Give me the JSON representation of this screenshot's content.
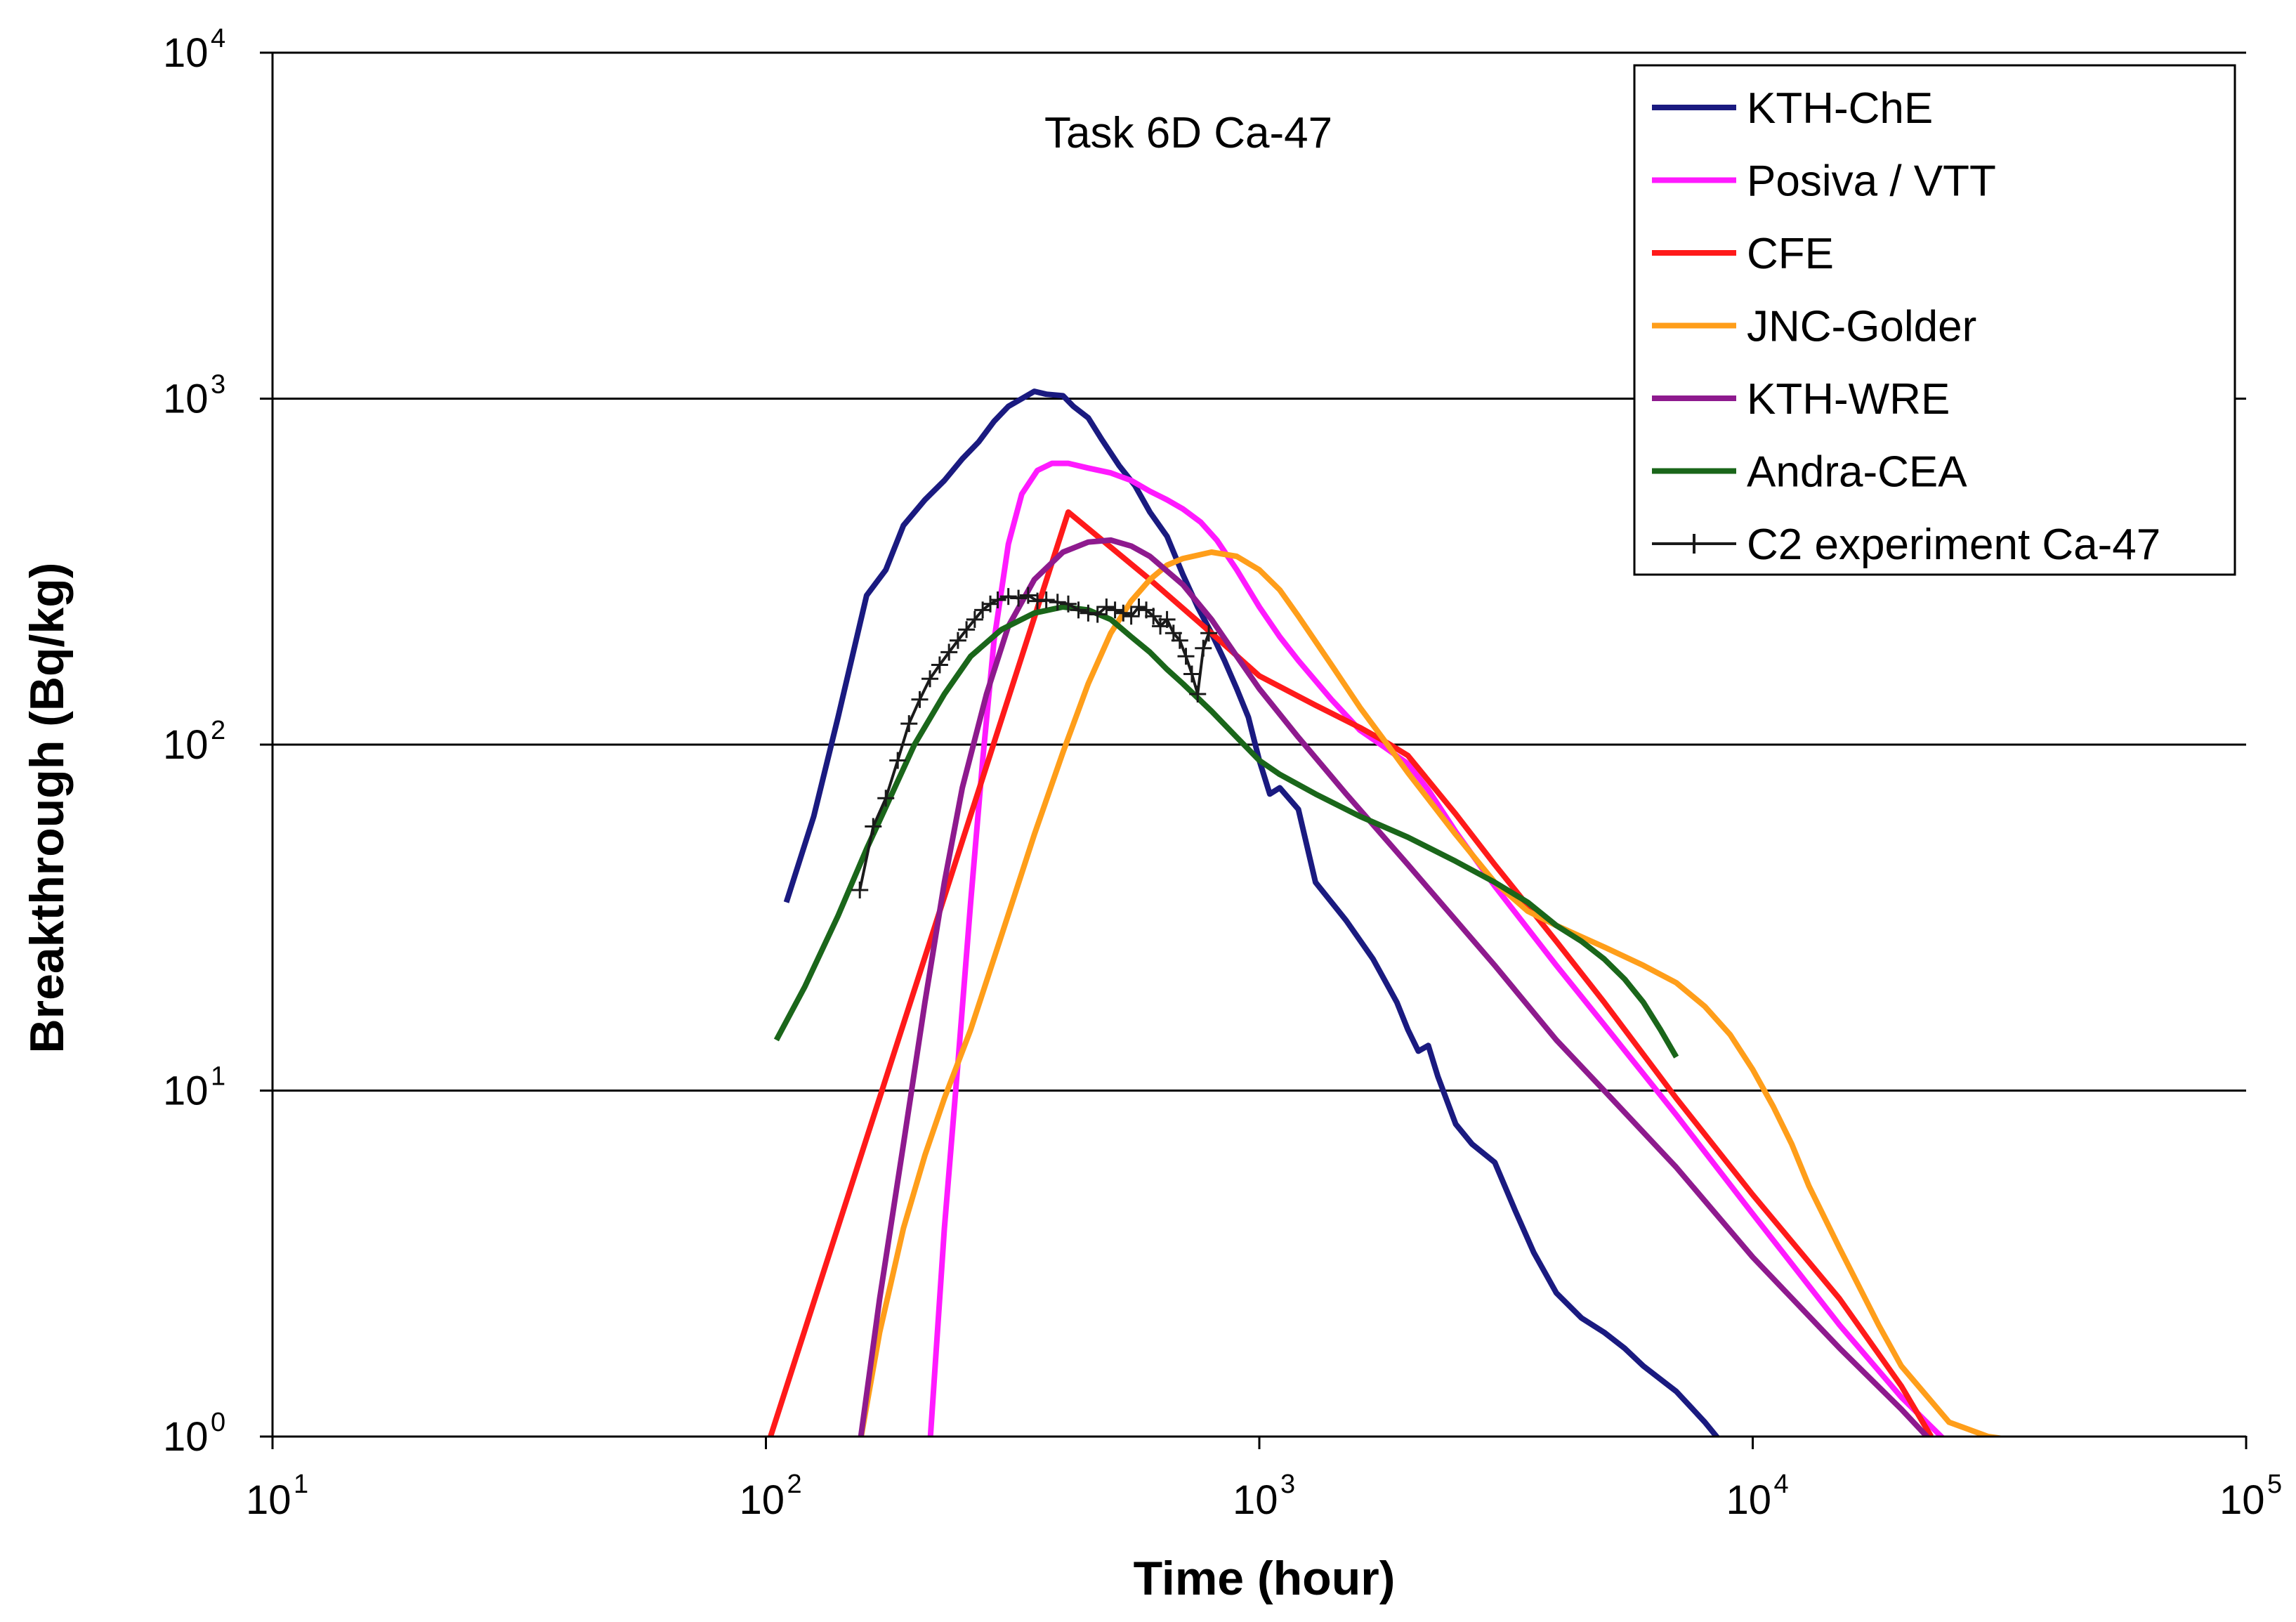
{
  "chart_data": {
    "type": "line",
    "title": "Task 6D Ca-47",
    "xlabel": "Time (hour)",
    "ylabel": "Breakthrough (Bq/kg)",
    "xscale": "log",
    "yscale": "log",
    "xlim": [
      10,
      100000
    ],
    "ylim": [
      1,
      10000
    ],
    "x_ticks": [
      {
        "base": "10",
        "exp": "1",
        "value": 10
      },
      {
        "base": "10",
        "exp": "2",
        "value": 100
      },
      {
        "base": "10",
        "exp": "3",
        "value": 1000
      },
      {
        "base": "10",
        "exp": "4",
        "value": 10000
      },
      {
        "base": "10",
        "exp": "5",
        "value": 100000
      }
    ],
    "y_ticks": [
      {
        "base": "10",
        "exp": "0",
        "value": 1
      },
      {
        "base": "10",
        "exp": "1",
        "value": 10
      },
      {
        "base": "10",
        "exp": "2",
        "value": 100
      },
      {
        "base": "10",
        "exp": "3",
        "value": 1000
      },
      {
        "base": "10",
        "exp": "4",
        "value": 10000
      }
    ],
    "grid": "horizontal major",
    "legend_position": "top-right",
    "series": [
      {
        "name": "KTH-ChE",
        "color": "#1a1a80",
        "style": "line",
        "x": [
          110,
          125,
          140,
          160,
          175,
          190,
          210,
          230,
          250,
          270,
          290,
          310,
          330,
          350,
          370,
          400,
          420,
          450,
          480,
          520,
          560,
          600,
          650,
          700,
          750,
          800,
          850,
          900,
          950,
          1000,
          1050,
          1100,
          1200,
          1300,
          1500,
          1700,
          1900,
          2000,
          2100,
          2200,
          2300,
          2500,
          2700,
          3000,
          3300,
          3600,
          4000,
          4500,
          5000,
          5500,
          6000,
          7000,
          8000,
          8700
        ],
        "y": [
          35,
          62,
          120,
          270,
          320,
          430,
          510,
          580,
          670,
          750,
          860,
          950,
          1000,
          1050,
          1030,
          1020,
          950,
          880,
          760,
          640,
          560,
          470,
          400,
          310,
          250,
          210,
          175,
          145,
          120,
          90,
          72,
          75,
          65,
          40,
          31,
          24,
          18,
          15,
          13,
          13.5,
          11,
          8,
          7,
          6.2,
          4.5,
          3.4,
          2.6,
          2.2,
          2,
          1.8,
          1.6,
          1.35,
          1.1,
          0.95
        ]
      },
      {
        "name": "Posiva / VTT",
        "color": "#ff1aff",
        "style": "line",
        "x": [
          215,
          230,
          245,
          260,
          275,
          290,
          310,
          330,
          355,
          380,
          410,
          450,
          500,
          550,
          600,
          650,
          700,
          760,
          820,
          900,
          1000,
          1100,
          1200,
          1400,
          1600,
          1800,
          2000,
          2200,
          2500,
          3000,
          4000,
          5000,
          7000,
          10000,
          15000,
          20000,
          25000
        ],
        "y": [
          0.95,
          4,
          12,
          35,
          90,
          200,
          380,
          530,
          620,
          650,
          650,
          630,
          610,
          580,
          540,
          510,
          480,
          440,
          390,
          320,
          250,
          205,
          175,
          135,
          110,
          98,
          88,
          74,
          56,
          39,
          23,
          15.5,
          8.5,
          4.4,
          2.1,
          1.3,
          0.95
        ]
      },
      {
        "name": "CFE",
        "color": "#ff1a1a",
        "style": "line",
        "x": [
          101,
          410,
          600,
          800,
          1000,
          1300,
          1600,
          1800,
          2000,
          2500,
          3000,
          4000,
          5000,
          7000,
          10000,
          15000,
          20000,
          23000
        ],
        "y": [
          0.95,
          470,
          300,
          210,
          158,
          130,
          112,
          102,
          93,
          63,
          45,
          27,
          18,
          9.5,
          5,
          2.5,
          1.4,
          1.0
        ]
      },
      {
        "name": "JNC-Golder",
        "color": "#ff9e1a",
        "style": "line",
        "x": [
          155,
          170,
          190,
          210,
          230,
          260,
          300,
          350,
          400,
          450,
          500,
          550,
          600,
          650,
          700,
          800,
          900,
          1000,
          1100,
          1200,
          1400,
          1600,
          1800,
          2000,
          2500,
          3000,
          3500,
          4000,
          5000,
          6000,
          7000,
          8000,
          9000,
          10000,
          11000,
          12000,
          13000,
          15000,
          18000,
          20000,
          25000,
          30000,
          35000
        ],
        "y": [
          0.95,
          2,
          4,
          6.5,
          9.5,
          15,
          28,
          55,
          95,
          150,
          210,
          260,
          300,
          330,
          345,
          360,
          350,
          320,
          280,
          235,
          170,
          128,
          102,
          83,
          55,
          40,
          33,
          30,
          26,
          23,
          20.5,
          17.5,
          14.5,
          11.5,
          9,
          7,
          5.3,
          3.5,
          2.1,
          1.6,
          1.1,
          1.0,
          0.97
        ]
      },
      {
        "name": "KTH-WRE",
        "color": "#8e1a8e",
        "style": "line",
        "x": [
          155,
          170,
          190,
          210,
          230,
          250,
          280,
          310,
          350,
          400,
          450,
          500,
          550,
          600,
          700,
          800,
          900,
          1000,
          1200,
          1500,
          2000,
          3000,
          4000,
          5000,
          7000,
          10000,
          15000,
          20000,
          23000
        ],
        "y": [
          0.95,
          2.5,
          7,
          18,
          40,
          75,
          140,
          220,
          300,
          360,
          385,
          390,
          375,
          350,
          290,
          230,
          180,
          145,
          105,
          72,
          45,
          23,
          14,
          10,
          6,
          3.3,
          1.8,
          1.2,
          0.97
        ]
      },
      {
        "name": "Andra-CEA",
        "color": "#1a661a",
        "style": "line",
        "x": [
          105,
          120,
          140,
          160,
          180,
          200,
          230,
          260,
          300,
          350,
          400,
          450,
          500,
          550,
          600,
          650,
          700,
          800,
          900,
          1000,
          1100,
          1300,
          1600,
          2000,
          2500,
          3000,
          3500,
          4000,
          4500,
          5000,
          5500,
          6000,
          6500,
          7000
        ],
        "y": [
          14,
          20,
          32,
          50,
          72,
          100,
          140,
          180,
          215,
          240,
          250,
          245,
          230,
          205,
          185,
          165,
          150,
          125,
          105,
          90,
          82,
          72,
          62,
          54,
          46,
          40,
          35,
          30,
          27,
          24,
          21,
          18,
          15,
          12.5
        ]
      },
      {
        "name": "C2 experiment Ca-47",
        "color": "#1a1a1a",
        "style": "line-markers",
        "x": [
          155,
          165,
          175,
          185,
          195,
          205,
          215,
          225,
          235,
          245,
          255,
          265,
          275,
          285,
          295,
          310,
          325,
          340,
          355,
          370,
          390,
          410,
          430,
          450,
          470,
          490,
          510,
          530,
          550,
          570,
          590,
          610,
          630,
          650,
          670,
          690,
          710,
          730,
          750,
          770,
          790
        ],
        "y": [
          38,
          58,
          70,
          90,
          115,
          135,
          155,
          170,
          185,
          200,
          215,
          230,
          245,
          255,
          262,
          268,
          265,
          270,
          260,
          262,
          258,
          255,
          245,
          240,
          238,
          250,
          245,
          240,
          235,
          250,
          245,
          235,
          220,
          230,
          210,
          200,
          180,
          160,
          140,
          190,
          210
        ]
      }
    ]
  }
}
